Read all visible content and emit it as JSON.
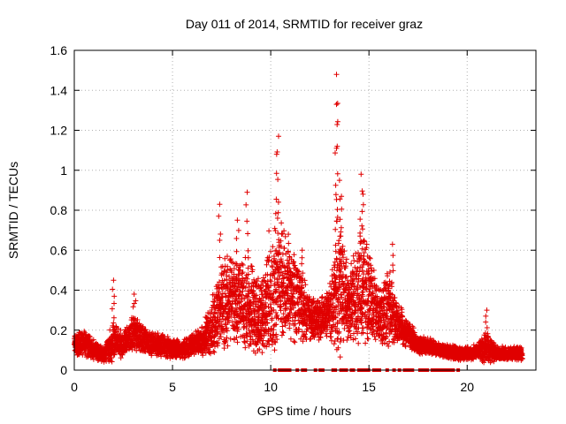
{
  "chart_data": {
    "type": "scatter",
    "title": "Day 011 of 2014, SRMTID for receiver graz",
    "xlabel": "GPS time / hours",
    "ylabel": "SRMTID / TECUs",
    "xlim": [
      0,
      23.5
    ],
    "ylim": [
      0,
      1.6
    ],
    "xticks": [
      0,
      5,
      10,
      15,
      20
    ],
    "xtick_labels": [
      "0",
      "5",
      "10",
      "15",
      "20"
    ],
    "yticks": [
      0,
      0.2,
      0.4,
      0.6,
      0.8,
      1.0,
      1.2,
      1.4,
      1.6
    ],
    "ytick_labels": [
      "0",
      "0.2",
      "0.4",
      "0.6",
      "0.8",
      "1",
      "1.2",
      "1.4",
      "1.6"
    ],
    "grid": true,
    "marker": "plus",
    "color": "#e00000",
    "envelope": {
      "description": "approximate median level (min, max) of the SRMTID point cloud by hour",
      "hours": [
        0,
        0.5,
        1,
        1.5,
        2,
        2.5,
        3,
        3.5,
        4,
        4.5,
        5,
        5.5,
        6,
        6.5,
        7,
        7.5,
        8,
        8.5,
        9,
        9.5,
        10,
        10.5,
        11,
        11.5,
        12,
        12.5,
        13,
        13.5,
        14,
        14.5,
        15,
        15.5,
        16,
        16.5,
        17,
        17.5,
        18,
        18.5,
        19,
        19.5,
        20,
        20.5,
        21,
        21.5,
        22,
        22.5,
        22.8
      ],
      "base": [
        0.12,
        0.13,
        0.1,
        0.07,
        0.14,
        0.12,
        0.18,
        0.15,
        0.12,
        0.12,
        0.1,
        0.1,
        0.12,
        0.14,
        0.2,
        0.3,
        0.35,
        0.32,
        0.28,
        0.25,
        0.35,
        0.4,
        0.35,
        0.32,
        0.25,
        0.25,
        0.28,
        0.35,
        0.3,
        0.4,
        0.35,
        0.25,
        0.3,
        0.22,
        0.18,
        0.12,
        0.12,
        0.1,
        0.09,
        0.08,
        0.08,
        0.09,
        0.1,
        0.08,
        0.08,
        0.08,
        0.08
      ],
      "spread": [
        0.07,
        0.1,
        0.08,
        0.05,
        0.15,
        0.08,
        0.14,
        0.1,
        0.09,
        0.08,
        0.07,
        0.07,
        0.08,
        0.1,
        0.2,
        0.35,
        0.3,
        0.3,
        0.35,
        0.25,
        0.5,
        0.45,
        0.35,
        0.3,
        0.15,
        0.15,
        0.2,
        0.5,
        0.25,
        0.45,
        0.35,
        0.2,
        0.3,
        0.15,
        0.1,
        0.07,
        0.06,
        0.05,
        0.05,
        0.05,
        0.05,
        0.05,
        0.12,
        0.05,
        0.05,
        0.05,
        0.05
      ]
    },
    "peaks": [
      {
        "x": 2.0,
        "y": 0.45
      },
      {
        "x": 3.05,
        "y": 0.38
      },
      {
        "x": 7.4,
        "y": 0.83
      },
      {
        "x": 8.3,
        "y": 0.75
      },
      {
        "x": 8.8,
        "y": 0.89
      },
      {
        "x": 10.4,
        "y": 1.17
      },
      {
        "x": 10.3,
        "y": 1.08
      },
      {
        "x": 10.9,
        "y": 0.68
      },
      {
        "x": 11.6,
        "y": 0.6
      },
      {
        "x": 13.35,
        "y": 1.48
      },
      {
        "x": 13.35,
        "y": 1.33
      },
      {
        "x": 13.35,
        "y": 1.11
      },
      {
        "x": 13.5,
        "y": 0.95
      },
      {
        "x": 13.6,
        "y": 0.87
      },
      {
        "x": 14.6,
        "y": 0.98
      },
      {
        "x": 14.7,
        "y": 0.88
      },
      {
        "x": 16.2,
        "y": 0.63
      },
      {
        "x": 21.0,
        "y": 0.3
      }
    ],
    "zero_bands": [
      {
        "from": 9.9,
        "to": 19.6,
        "value": 0
      }
    ]
  }
}
